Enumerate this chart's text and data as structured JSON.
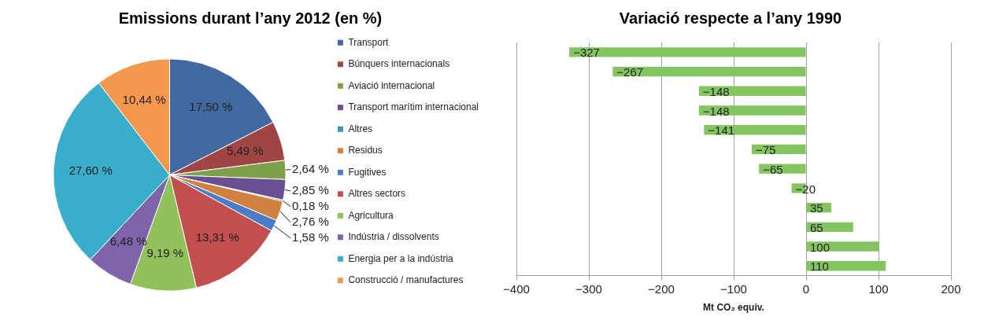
{
  "chart_data": [
    {
      "type": "pie",
      "title": "Emissions durant l’any 2012 (en %)",
      "legend": "right",
      "categories": [
        "Transport",
        "Búnquers internacionals",
        "Aviació internacional",
        "Transport marítim internacional",
        "Altres",
        "Residus",
        "Fugitives",
        "Altres sectors",
        "Agricultura",
        "Indústria / dissolvents",
        "Energia per a la indústria",
        "Construcció / manufactures"
      ],
      "values": [
        17.5,
        5.49,
        2.64,
        2.85,
        0.18,
        2.76,
        1.58,
        13.31,
        9.19,
        6.48,
        27.6,
        10.44
      ],
      "colors": [
        "#4169a0",
        "#a04544",
        "#7fa04a",
        "#6a5090",
        "#3a95ae",
        "#d0813f",
        "#4a7cc8",
        "#c24f4f",
        "#92c05a",
        "#7e64aa",
        "#38aecb",
        "#f3984d"
      ],
      "value_labels": [
        "17,50 %",
        "5,49 %",
        "2,64 %",
        "2,85 %",
        "0,18 %",
        "2,76 %",
        "1,58 %",
        "13,31 %",
        "9,19 %",
        "6,48 %",
        "27,60 %",
        "10,44 %"
      ]
    },
    {
      "type": "bar",
      "orientation": "horizontal",
      "title": "Variació respecte a l’any 1990",
      "xlabel": "Mt CO₂ equiv.",
      "categories": [
        null,
        null,
        null,
        null,
        null,
        null,
        null,
        null,
        null,
        null,
        null,
        null
      ],
      "values": [
        -327,
        -267,
        -148,
        -148,
        -141,
        -75,
        -65,
        -20,
        35,
        65,
        100,
        110
      ],
      "color": "#84c562",
      "value_labels": [
        "−327",
        "−267",
        "−148",
        "−148",
        "−141",
        "−75",
        "−65",
        "−20",
        "35",
        "65",
        "100",
        "110"
      ],
      "xlim": [
        -400,
        200
      ],
      "xticks": [
        {
          "value": -400,
          "label": "−400"
        },
        {
          "value": -300,
          "label": "−300"
        },
        {
          "value": -200,
          "label": "−200"
        },
        {
          "value": -100,
          "label": "−100"
        },
        0,
        100,
        200
      ],
      "grid": "x"
    }
  ]
}
